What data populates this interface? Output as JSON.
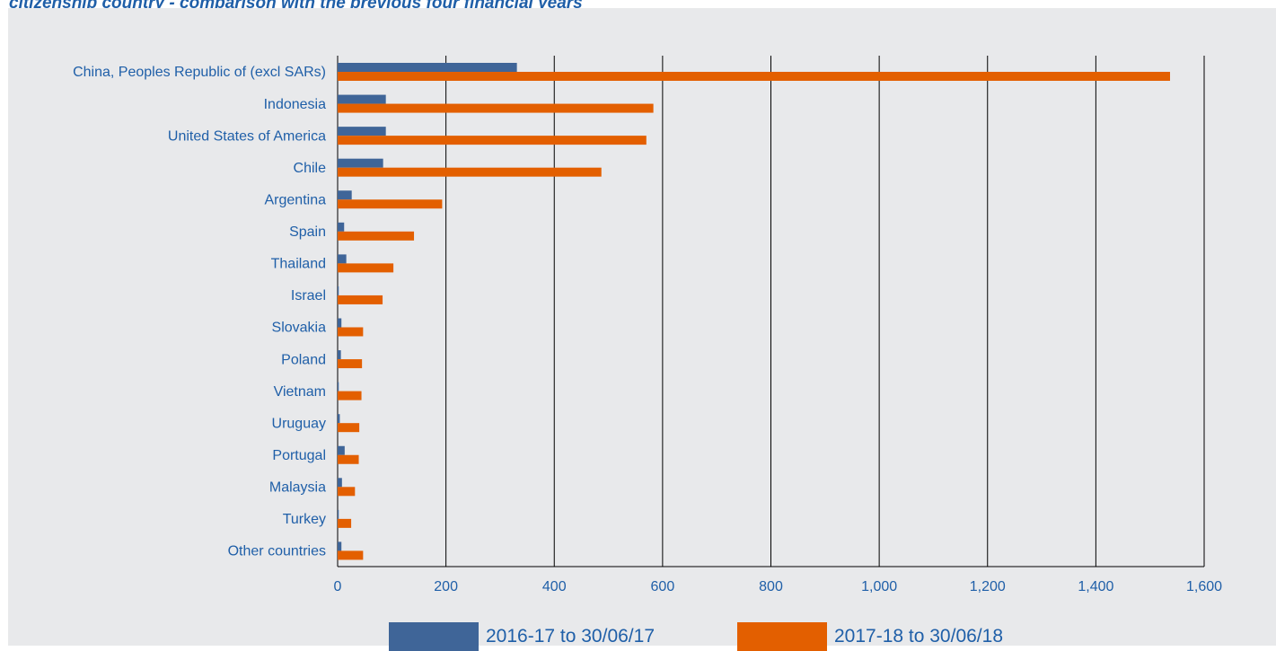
{
  "title": "citizenship country - comparison with the previous four financial years",
  "colors": {
    "panel_bg": "#e8e9eb",
    "series_2016": "#3f6598",
    "series_2017": "#e35f00",
    "text": "#1f5fa8",
    "grid": "#000000"
  },
  "chart_data": {
    "type": "bar",
    "orientation": "horizontal",
    "title": "citizenship country - comparison with the previous four financial years",
    "categories": [
      "China, Peoples Republic of (excl SARs)",
      "Indonesia",
      "United States of America",
      "Chile",
      "Argentina",
      "Spain",
      "Thailand",
      "Israel",
      "Slovakia",
      "Poland",
      "Vietnam",
      "Uruguay",
      "Portugal",
      "Malaysia",
      "Turkey",
      "Other countries"
    ],
    "series": [
      {
        "name": "2016-17 to 30/06/17",
        "values": [
          331,
          89,
          89,
          84,
          26,
          12,
          16,
          2,
          7,
          6,
          2,
          4,
          13,
          8,
          2,
          7
        ]
      },
      {
        "name": "2017-18 to 30/06/18",
        "values": [
          1537,
          583,
          570,
          487,
          193,
          141,
          103,
          83,
          47,
          45,
          44,
          40,
          39,
          32,
          25,
          47
        ]
      }
    ],
    "xlim": [
      0,
      1600
    ],
    "xticks": [
      0,
      200,
      400,
      600,
      800,
      1000,
      1200,
      1400,
      1600
    ],
    "xtick_labels": [
      "0",
      "200",
      "400",
      "600",
      "800",
      "1,000",
      "1,200",
      "1,400",
      "1,600"
    ],
    "grid": "vertical",
    "legend_position": "bottom",
    "xlabel": "",
    "ylabel": ""
  }
}
